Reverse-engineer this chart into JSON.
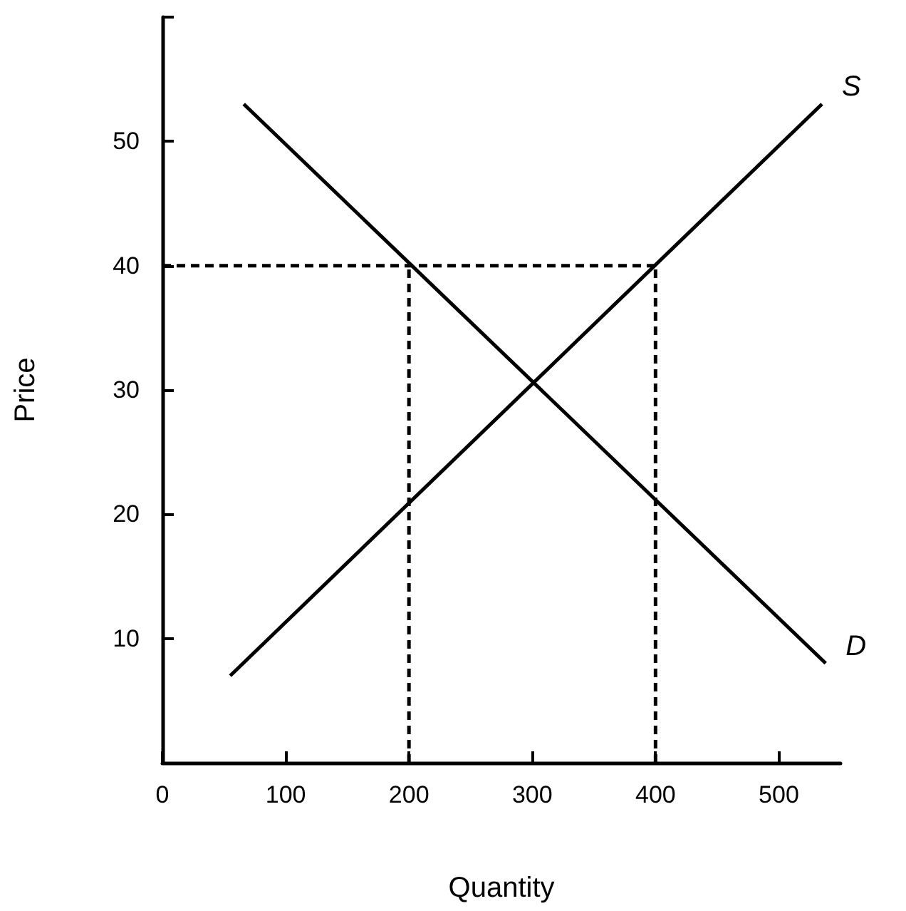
{
  "chart_data": {
    "type": "line",
    "xlabel": "Quantity",
    "ylabel": "Price",
    "xlim": [
      0,
      550
    ],
    "xticks": [
      0,
      100,
      200,
      300,
      400,
      500
    ],
    "ylim": [
      0,
      60
    ],
    "yticks": [
      10,
      20,
      30,
      40,
      50,
      {
        "value": 60,
        "label": null
      }
    ],
    "grid": false,
    "legend": false,
    "marker": "none",
    "series": [
      {
        "name": "S",
        "color": "#000000",
        "line_style": "solid",
        "x": [
          55,
          535
        ],
        "values": [
          7,
          53
        ]
      },
      {
        "name": "D",
        "color": "#000000",
        "line_style": "solid",
        "x": [
          66,
          538
        ],
        "values": [
          53,
          8
        ]
      },
      {
        "color": "#000000",
        "line_style": "dashed",
        "x": [
          0,
          400
        ],
        "values": [
          40,
          40
        ]
      },
      {
        "color": "#000000",
        "line_style": "dashed",
        "x": [
          200,
          200
        ],
        "values": [
          0,
          40
        ]
      },
      {
        "color": "#000000",
        "line_style": "dashed",
        "x": [
          400,
          400
        ],
        "values": [
          0,
          40
        ]
      }
    ]
  }
}
